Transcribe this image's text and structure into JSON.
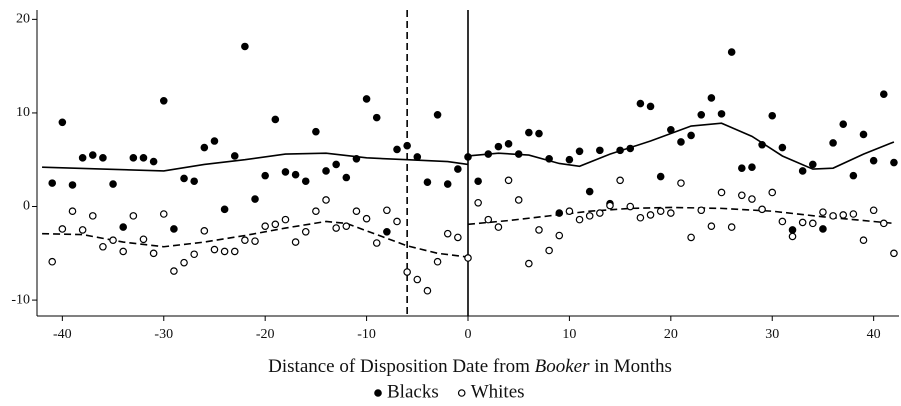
{
  "chart_data": {
    "type": "scatter",
    "xlim": [
      -42.5,
      42.5
    ],
    "ylim": [
      -11.7,
      21
    ],
    "xticks": [
      -40,
      -30,
      -20,
      -10,
      0,
      10,
      20,
      30,
      40
    ],
    "yticks": [
      -10,
      0,
      10,
      20
    ],
    "xlabel": [
      {
        "text": "Distance of Disposition Date from "
      },
      {
        "text": "Booker",
        "italic": true
      },
      {
        "text": " in Months"
      }
    ],
    "reference_lines": [
      {
        "x": -6,
        "style": "dashed"
      },
      {
        "x": 0,
        "style": "solid"
      }
    ],
    "x": [
      -41,
      -40,
      -39,
      -38,
      -37,
      -36,
      -35,
      -34,
      -33,
      -32,
      -31,
      -30,
      -29,
      -28,
      -27,
      -26,
      -25,
      -24,
      -23,
      -22,
      -21,
      -20,
      -19,
      -18,
      -17,
      -16,
      -15,
      -14,
      -13,
      -12,
      -11,
      -10,
      -9,
      -8,
      -7,
      -6,
      -5,
      -4,
      -3,
      -2,
      -1,
      0,
      1,
      2,
      3,
      4,
      5,
      6,
      7,
      8,
      9,
      10,
      11,
      12,
      13,
      14,
      15,
      16,
      17,
      18,
      19,
      20,
      21,
      22,
      23,
      24,
      25,
      26,
      27,
      28,
      29,
      30,
      31,
      32,
      33,
      34,
      35,
      36,
      37,
      38,
      39,
      40,
      41,
      42
    ],
    "series": [
      {
        "name": "Blacks",
        "color": "#000000",
        "marker": "filled",
        "line_style": "solid",
        "values": [
          2.5,
          9.0,
          2.3,
          5.2,
          5.5,
          5.2,
          2.4,
          -2.2,
          5.2,
          5.2,
          4.8,
          11.3,
          -2.4,
          3.0,
          2.7,
          6.3,
          7.0,
          -0.3,
          5.4,
          17.1,
          0.8,
          3.3,
          9.3,
          3.7,
          3.4,
          2.7,
          8.0,
          3.8,
          4.5,
          3.1,
          5.1,
          11.5,
          9.5,
          -2.7,
          6.1,
          6.5,
          5.3,
          2.6,
          9.8,
          2.4,
          4.0,
          5.3,
          2.7,
          5.6,
          6.4,
          6.7,
          5.6,
          7.9,
          7.8,
          5.1,
          -0.7,
          5.0,
          5.9,
          1.6,
          6.0,
          0.3,
          6.0,
          6.2,
          11.0,
          10.7,
          3.2,
          8.2,
          6.9,
          7.6,
          9.8,
          11.6,
          9.9,
          16.5,
          4.1,
          4.2,
          6.6,
          9.7,
          6.3,
          -2.5,
          3.8,
          4.5,
          -2.4,
          6.8,
          8.8,
          3.3,
          7.7,
          4.9,
          12.0,
          4.7
        ],
        "fit": [
          {
            "x": [
              -42,
              -36,
              -30,
              -26,
              -22,
              -18,
              -14,
              -10,
              -6,
              -2,
              0
            ],
            "values": [
              4.2,
              4.0,
              3.8,
              4.5,
              5.0,
              5.6,
              5.7,
              5.2,
              5.0,
              4.8,
              4.5
            ]
          },
          {
            "x": [
              0,
              3,
              6,
              9,
              11,
              14,
              18,
              22,
              25,
              28,
              31,
              34,
              36,
              39,
              42
            ],
            "values": [
              5.4,
              5.7,
              5.5,
              4.6,
              4.3,
              5.6,
              7.0,
              8.6,
              8.9,
              7.5,
              5.4,
              4.0,
              4.1,
              5.6,
              6.9
            ]
          }
        ]
      },
      {
        "name": "Whites",
        "color": "#000000",
        "marker": "hollow",
        "line_style": "dashed",
        "values": [
          -5.9,
          -2.4,
          -0.5,
          -2.5,
          -1.0,
          -4.3,
          -3.6,
          -4.8,
          -1.0,
          -3.5,
          -5.0,
          -0.8,
          -6.9,
          -6.0,
          -5.1,
          -2.6,
          -4.6,
          -4.8,
          -4.8,
          -3.6,
          -3.7,
          -2.1,
          -1.9,
          -1.4,
          -3.8,
          -2.7,
          -0.5,
          0.7,
          -2.3,
          -2.1,
          -0.5,
          -1.3,
          -3.9,
          -0.4,
          -1.6,
          -7.0,
          -7.8,
          -9.0,
          -5.9,
          -2.9,
          -3.3,
          -5.5,
          0.4,
          -1.4,
          -2.2,
          2.8,
          0.7,
          -6.1,
          -2.5,
          -4.7,
          -3.1,
          -0.5,
          -1.4,
          -1.0,
          -0.7,
          0.1,
          2.8,
          0.0,
          -1.2,
          -0.9,
          -0.5,
          -0.7,
          2.5,
          -3.3,
          -0.4,
          -2.1,
          1.5,
          -2.2,
          1.2,
          0.8,
          -0.3,
          1.5,
          -1.6,
          -3.2,
          -1.7,
          -1.8,
          -0.6,
          -1.0,
          -0.9,
          -0.8,
          -3.6,
          -0.4,
          -1.8,
          -5.0
        ],
        "fit": [
          {
            "x": [
              -42,
              -38,
              -34,
              -30,
              -26,
              -22,
              -18,
              -14,
              -12,
              -9,
              -6,
              -3,
              0
            ],
            "values": [
              -2.9,
              -3.0,
              -3.8,
              -4.3,
              -3.8,
              -3.1,
              -2.3,
              -1.6,
              -1.8,
              -3.0,
              -4.2,
              -5.0,
              -5.4
            ]
          },
          {
            "x": [
              0,
              4,
              8,
              12,
              16,
              20,
              25,
              30,
              35,
              40,
              42
            ],
            "values": [
              -1.9,
              -1.5,
              -1.0,
              -0.5,
              -0.2,
              -0.1,
              -0.2,
              -0.5,
              -1.1,
              -1.6,
              -1.8
            ]
          }
        ]
      }
    ]
  }
}
